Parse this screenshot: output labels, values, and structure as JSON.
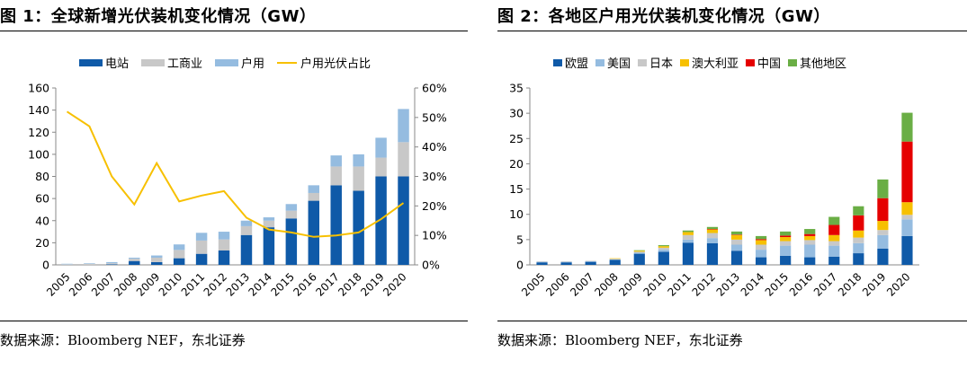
{
  "chart_data": [
    {
      "type": "bar",
      "stacked": true,
      "title": "图 1：全球新增光伏装机变化情况（GW）",
      "source": "数据来源：Bloomberg NEF，东北证券",
      "categories": [
        "2005",
        "2006",
        "2007",
        "2008",
        "2009",
        "2010",
        "2011",
        "2012",
        "2013",
        "2014",
        "2015",
        "2016",
        "2017",
        "2018",
        "2019",
        "2020"
      ],
      "series": [
        {
          "name": "电站",
          "kind": "bar",
          "color": "#0F5AA8",
          "values": [
            0,
            0,
            0.5,
            3.5,
            2.5,
            6,
            10,
            13,
            27,
            34,
            42,
            58,
            72,
            67,
            80,
            80
          ]
        },
        {
          "name": "工商业",
          "kind": "bar",
          "color": "#C8C8C8",
          "values": [
            0.5,
            1,
            1,
            2,
            4,
            7.5,
            12,
            10,
            8,
            6,
            7,
            7,
            17,
            22,
            17,
            31
          ]
        },
        {
          "name": "户用",
          "kind": "bar",
          "color": "#95BCE0",
          "values": [
            0.5,
            0.5,
            1,
            1,
            2,
            5,
            7,
            7,
            5,
            3,
            6,
            7,
            10,
            11,
            18,
            30
          ]
        },
        {
          "name": "户用光伏占比",
          "kind": "line",
          "axis": "right",
          "color": "#F7C000",
          "values": [
            52,
            47,
            30,
            20.5,
            34.5,
            21.5,
            23.5,
            25,
            16,
            12,
            11,
            9.5,
            10,
            11,
            15.5,
            21
          ]
        }
      ],
      "ylim": [
        0,
        160
      ],
      "yticks": [
        0,
        20,
        40,
        60,
        80,
        100,
        120,
        140,
        160
      ],
      "y2lim": [
        0,
        60
      ],
      "y2ticks": [
        "0%",
        "10%",
        "20%",
        "30%",
        "40%",
        "50%",
        "60%"
      ],
      "legend_position": "top",
      "grid": false
    },
    {
      "type": "bar",
      "stacked": true,
      "title": "图 2：各地区户用光伏装机变化情况（GW）",
      "source": "数据来源：Bloomberg NEF，东北证券",
      "categories": [
        "2005",
        "2006",
        "2007",
        "2008",
        "2009",
        "2010",
        "2011",
        "2012",
        "2013",
        "2014",
        "2015",
        "2016",
        "2017",
        "2018",
        "2019",
        "2020"
      ],
      "series": [
        {
          "name": "欧盟",
          "color": "#0F5AA8",
          "values": [
            0.5,
            0.5,
            0.6,
            1.0,
            2.2,
            2.6,
            4.4,
            4.3,
            2.8,
            1.5,
            1.8,
            1.5,
            1.6,
            2.3,
            3.2,
            5.7
          ]
        },
        {
          "name": "美国",
          "color": "#95BCE0",
          "values": [
            0.1,
            0.1,
            0.1,
            0.1,
            0.2,
            0.4,
            0.6,
            1.0,
            1.2,
            1.5,
            2.0,
            2.5,
            2.2,
            2.0,
            2.7,
            3.3
          ]
        },
        {
          "name": "日本",
          "color": "#C8C8C8",
          "values": [
            0.1,
            0.1,
            0.1,
            0.1,
            0.2,
            0.4,
            0.9,
            1.0,
            1.0,
            1.0,
            0.9,
            0.9,
            0.9,
            1.1,
            1.0,
            0.9
          ]
        },
        {
          "name": "澳大利亚",
          "color": "#F7C000",
          "values": [
            0.0,
            0.0,
            0.0,
            0.1,
            0.2,
            0.3,
            0.6,
            0.7,
            0.9,
            0.9,
            0.8,
            0.8,
            1.2,
            1.4,
            1.8,
            2.5
          ]
        },
        {
          "name": "中国",
          "color": "#E50000",
          "values": [
            0.0,
            0.0,
            0.0,
            0.0,
            0.0,
            0.0,
            0.0,
            0.1,
            0.1,
            0.2,
            0.3,
            0.4,
            2.0,
            3.0,
            4.5,
            12.0
          ]
        },
        {
          "name": "其他地区",
          "color": "#6AAE45",
          "values": [
            0.0,
            0.0,
            0.0,
            0.0,
            0.1,
            0.2,
            0.3,
            0.4,
            0.6,
            0.6,
            0.8,
            1.0,
            1.6,
            1.8,
            3.7,
            5.7
          ]
        }
      ],
      "ylim": [
        0,
        35
      ],
      "yticks": [
        0,
        5,
        10,
        15,
        20,
        25,
        30,
        35
      ],
      "legend_position": "top",
      "grid": false
    }
  ]
}
